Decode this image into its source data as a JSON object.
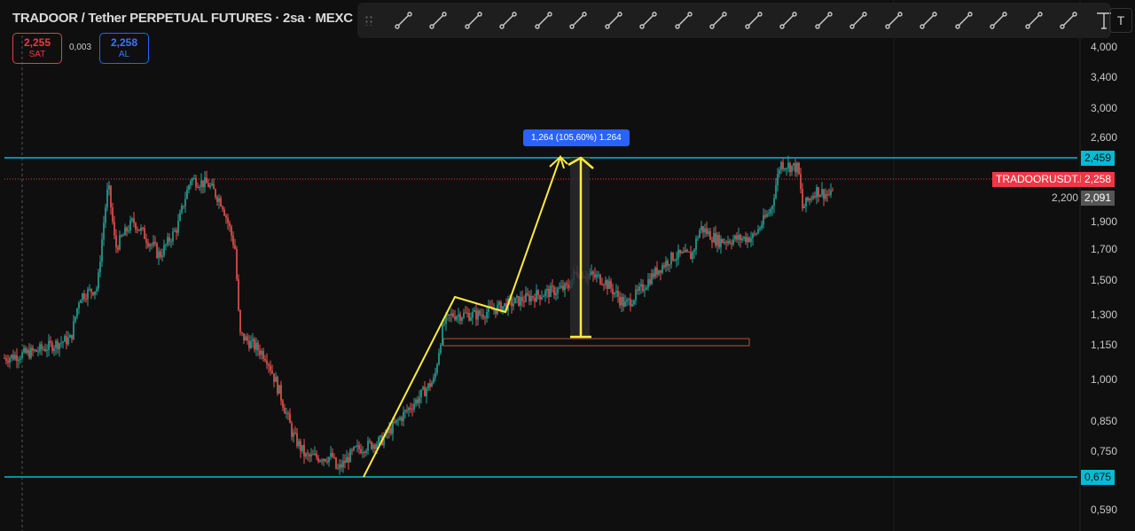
{
  "header": {
    "title": "TRADOOR / Tether PERPETUAL FUTURES · 2sa · MEXC",
    "sell_price": "2,255",
    "sell_label": "SAT",
    "spread": "0,003",
    "buy_price": "2,258",
    "buy_label": "AL"
  },
  "toolbar": {
    "tools": [
      "trend-line",
      "horizontal-ray",
      "parallel-channel",
      "xabcd-pattern",
      "rectangle",
      "pitchfork",
      "price-range",
      "date-price-range",
      "elliott-wave",
      "arc",
      "long-position",
      "fib-retracement",
      "fib-channel",
      "head-shoulders",
      "abcd-pattern",
      "path",
      "bars-pattern",
      "fib-extension",
      "cypher-pattern",
      "ray",
      "text"
    ],
    "dropdown": "T"
  },
  "price_axis": {
    "labels": [
      "4,000",
      "3,400",
      "3,000",
      "2,600",
      "2,200",
      "1,900",
      "1,700",
      "1,500",
      "1,300",
      "1,150",
      "1,000",
      "0,850",
      "0,750",
      "0,590"
    ],
    "resistance": "2,459",
    "support": "0,675",
    "symbol_tag": "TRADOORUSDT.P",
    "last_price": "2,258",
    "prev_price": "2,091"
  },
  "measure": {
    "label": "1,264 (105,60%) 1.264"
  },
  "colors": {
    "up": "#26a69a",
    "down": "#ef5350",
    "level": "#00bcd4",
    "drawing": "#ffeb3b",
    "last": "#f23645"
  },
  "chart_data": {
    "type": "candlestick",
    "scale": "log",
    "price_path": [
      [
        5,
        1.09
      ],
      [
        40,
        1.12
      ],
      [
        80,
        1.18
      ],
      [
        90,
        1.4
      ],
      [
        110,
        1.45
      ],
      [
        122,
        2.2
      ],
      [
        130,
        1.7
      ],
      [
        150,
        1.9
      ],
      [
        180,
        1.65
      ],
      [
        200,
        1.85
      ],
      [
        215,
        2.25
      ],
      [
        235,
        2.2
      ],
      [
        250,
        2.05
      ],
      [
        265,
        1.7
      ],
      [
        270,
        1.2
      ],
      [
        285,
        1.15
      ],
      [
        300,
        1.1
      ],
      [
        315,
        0.95
      ],
      [
        330,
        0.8
      ],
      [
        345,
        0.73
      ],
      [
        375,
        0.73
      ],
      [
        380,
        0.69
      ],
      [
        400,
        0.75
      ],
      [
        430,
        0.78
      ],
      [
        450,
        0.85
      ],
      [
        470,
        0.92
      ],
      [
        490,
        1.0
      ],
      [
        500,
        1.25
      ],
      [
        510,
        1.3
      ],
      [
        540,
        1.3
      ],
      [
        570,
        1.35
      ],
      [
        600,
        1.4
      ],
      [
        640,
        1.45
      ],
      [
        650,
        1.55
      ],
      [
        680,
        1.5
      ],
      [
        705,
        1.35
      ],
      [
        720,
        1.42
      ],
      [
        740,
        1.55
      ],
      [
        760,
        1.65
      ],
      [
        780,
        1.65
      ],
      [
        790,
        1.85
      ],
      [
        810,
        1.75
      ],
      [
        850,
        1.78
      ],
      [
        870,
        2.0
      ],
      [
        880,
        2.4
      ],
      [
        900,
        2.35
      ],
      [
        905,
        2.0
      ],
      [
        920,
        2.15
      ],
      [
        938,
        2.1
      ],
      [
        940,
        2.258
      ]
    ]
  }
}
